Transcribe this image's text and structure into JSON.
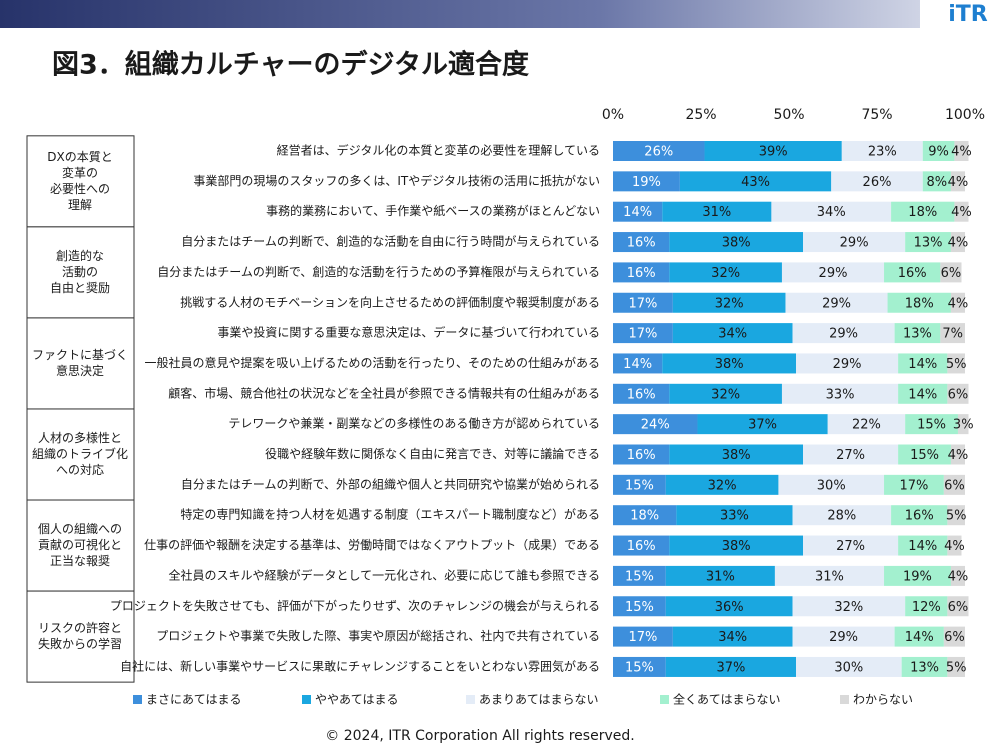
{
  "header": {
    "logo": "iTR"
  },
  "footer": "© 2024, ITR Corporation  All rights reserved.",
  "chart_data": {
    "type": "stacked-bar-horizontal",
    "title": "図3．組織カルチャーのデジタル適合度",
    "groups": [
      {
        "label": [
          "DXの本質と",
          "変革の",
          "必要性への",
          "理解"
        ]
      },
      {
        "label": [
          "創造的な",
          "活動の",
          "自由と奨励"
        ]
      },
      {
        "label": [
          "ファクトに基づく",
          "意思決定"
        ]
      },
      {
        "label": [
          "人材の多様性と",
          "組織のトライブ化",
          "への対応"
        ]
      },
      {
        "label": [
          "個人の組織への",
          "貢献の可視化と",
          "正当な報奨"
        ]
      },
      {
        "label": [
          "リスクの許容と",
          "失敗からの学習"
        ]
      }
    ],
    "categories": [
      "経営者は、デジタル化の本質と変革の必要性を理解している",
      "事業部門の現場のスタッフの多くは、ITやデジタル技術の活用に抵抗がない",
      "事務的業務において、手作業や紙ベースの業務がほとんどない",
      "自分またはチームの判断で、創造的な活動を自由に行う時間が与えられている",
      "自分またはチームの判断で、創造的な活動を行うための予算権限が与えられている",
      "挑戦する人材のモチベーションを向上させるための評価制度や報奨制度がある",
      "事業や投資に関する重要な意思決定は、データに基づいて行われている",
      "一般社員の意見や提案を吸い上げるための活動を行ったり、そのための仕組みがある",
      "顧客、市場、競合他社の状況などを全社員が参照できる情報共有の仕組みがある",
      "テレワークや兼業・副業などの多様性のある働き方が認められている",
      "役職や経験年数に関係なく自由に発言でき、対等に議論できる",
      "自分またはチームの判断で、外部の組織や個人と共同研究や協業が始められる",
      "特定の専門知識を持つ人材を処遇する制度（エキスパート職制度など）がある",
      "仕事の評価や報酬を決定する基準は、労働時間ではなくアウトプット（成果）である",
      "全社員のスキルや経験がデータとして一元化され、必要に応じて誰も参照できる",
      "プロジェクトを失敗させても、評価が下がったりせず、次のチャレンジの機会が与えられる",
      "プロジェクトや事業で失敗した際、事実や原因が総括され、社内で共有されている",
      "自社には、新しい事業やサービスに果敢にチャレンジすることをいとわない雰囲気がある"
    ],
    "series": [
      {
        "name": "まさにあてはまる",
        "color": "#3d8fdc",
        "label_color": "#ffffff",
        "values": [
          26,
          19,
          14,
          16,
          16,
          17,
          17,
          14,
          16,
          24,
          16,
          15,
          18,
          16,
          15,
          15,
          17,
          15
        ],
        "value_labels": [
          "26%",
          "19%",
          "14%",
          "16%",
          "16%",
          "17%",
          "17%",
          "14%",
          "16%",
          "24%",
          "16%",
          "15%",
          "18%",
          "16%",
          "15%",
          "15%",
          "17%",
          "15%"
        ]
      },
      {
        "name": "ややあてはまる",
        "color": "#1aa7e0",
        "label_color": "#1a1a1a",
        "values": [
          39,
          43,
          31,
          38,
          32,
          32,
          34,
          38,
          32,
          37,
          38,
          32,
          33,
          38,
          31,
          36,
          34,
          37
        ],
        "value_labels": [
          "39%",
          "43%",
          "31%",
          "38%",
          "32%",
          "32%",
          "34%",
          "38%",
          "32%",
          "37%",
          "38%",
          "32%",
          "33%",
          "38%",
          "31%",
          "36%",
          "34%",
          "37%"
        ]
      },
      {
        "name": "あまりあてはまらない",
        "color": "#e4ecf7",
        "label_color": "#1a1a1a",
        "values": [
          23,
          26,
          34,
          29,
          29,
          29,
          29,
          29,
          33,
          22,
          27,
          30,
          28,
          27,
          31,
          32,
          29,
          30
        ],
        "value_labels": [
          "23%",
          "26%",
          "34%",
          "29%",
          "29%",
          "29%",
          "29%",
          "29%",
          "33%",
          "22%",
          "27%",
          "30%",
          "28%",
          "27%",
          "31%",
          "32%",
          "29%",
          "30%"
        ]
      },
      {
        "name": "全くあてはまらない",
        "color": "#a3f0cf",
        "label_color": "#1a1a1a",
        "values": [
          9,
          8,
          18,
          13,
          16,
          18,
          13,
          14,
          14,
          15,
          15,
          17,
          16,
          14,
          19,
          12,
          14,
          13
        ],
        "value_labels": [
          "9%",
          "8%",
          "18%",
          "13%",
          "16%",
          "18%",
          "13%",
          "14%",
          "14%",
          "15%",
          "15%",
          "17%",
          "16%",
          "14%",
          "19%",
          "12%",
          "14%",
          "13%"
        ]
      },
      {
        "name": "わからない",
        "color": "#d9d9d9",
        "label_color": "#1a1a1a",
        "values": [
          4,
          4,
          4,
          4,
          6,
          4,
          7,
          5,
          6,
          3,
          4,
          6,
          5,
          4,
          4,
          6,
          6,
          5
        ],
        "value_labels": [
          "4%",
          "4%",
          "4%",
          "4%",
          "6%",
          "4%",
          "7%",
          "5%",
          "6%",
          "3%",
          "4%",
          "6%",
          "5%",
          "4%",
          "4%",
          "6%",
          "6%",
          "5%"
        ]
      }
    ],
    "xlim": [
      0,
      100
    ],
    "xticks": [
      {
        "value": 0,
        "label": "0%"
      },
      {
        "value": 25,
        "label": "25%"
      },
      {
        "value": 50,
        "label": "50%"
      },
      {
        "value": 75,
        "label": "75%"
      },
      {
        "value": 100,
        "label": "100%"
      }
    ]
  }
}
